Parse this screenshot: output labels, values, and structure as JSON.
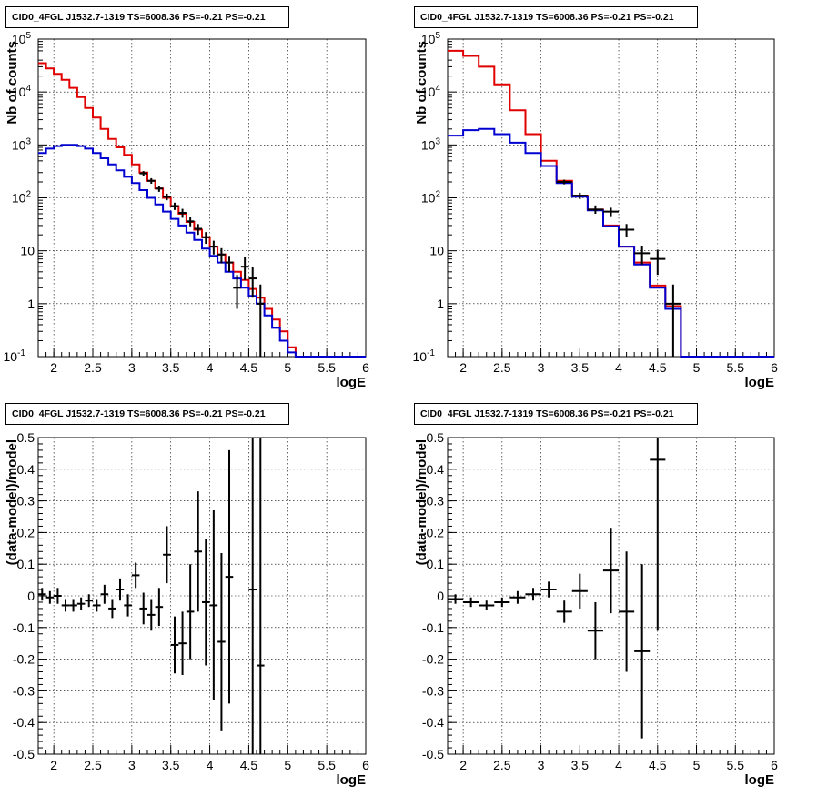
{
  "titles": {
    "tl": "CID0_4FGL J1532.7-1319 TS=6008.36 PS=-0.21 PS=-0.21",
    "tr": "CID0_4FGL J1532.7-1319 TS=6008.36 PS=-0.21 PS=-0.21",
    "bl": "CID0_4FGL J1532.7-1319 TS=6008.36 PS=-0.21 PS=-0.21",
    "br": "CID0_4FGL J1532.7-1319 TS=6008.36 PS=-0.21 PS=-0.21"
  },
  "colors": {
    "total_model": "#e00000",
    "source_model": "#0000d0",
    "data": "#000000",
    "grid": "#000000"
  },
  "chart_data": [
    {
      "id": "tl",
      "type": "line",
      "title": "CID0_4FGL J1532.7-1319 TS=6008.36 PS=-0.21 PS=-0.21",
      "xlabel": "logE",
      "ylabel": "Nb of counts",
      "xlim": [
        1.8,
        6
      ],
      "ylim": [
        0.1,
        100000
      ],
      "yscale": "log",
      "grid": true,
      "x_ticks": [
        "2",
        "2.5",
        "3",
        "3.5",
        "4",
        "4.5",
        "5",
        "5.5",
        "6"
      ],
      "y_ticks": [
        "10^-1",
        "1",
        "10",
        "10^2",
        "10^3",
        "10^4",
        "10^5"
      ],
      "series": [
        {
          "kind": "total_model",
          "bin_width": 0.1,
          "x": [
            1.85,
            1.95,
            2.05,
            2.15,
            2.25,
            2.35,
            2.45,
            2.55,
            2.65,
            2.75,
            2.85,
            2.95,
            3.05,
            3.15,
            3.25,
            3.35,
            3.45,
            3.55,
            3.65,
            3.75,
            3.85,
            3.95,
            4.05,
            4.15,
            4.25,
            4.35,
            4.45,
            4.55,
            4.65,
            4.75,
            4.85,
            4.95,
            5.05,
            5.15,
            5.25,
            5.35,
            5.45,
            5.55,
            5.65,
            5.75,
            5.85,
            5.95
          ],
          "y": [
            35000,
            28000,
            22000,
            17000,
            12000,
            8000,
            5000,
            3300,
            2000,
            1300,
            900,
            650,
            430,
            300,
            210,
            150,
            100,
            70,
            50,
            35,
            25,
            18,
            12,
            8.5,
            6,
            4,
            2.8,
            1.9,
            1.3,
            0.8,
            0.5,
            0.3,
            0.15,
            0.1,
            0.1,
            0.1,
            0.1,
            0.1,
            0.1,
            0.1,
            0.1,
            0.1
          ]
        },
        {
          "kind": "source_model",
          "bin_width": 0.1,
          "x": [
            1.85,
            1.95,
            2.05,
            2.15,
            2.25,
            2.35,
            2.45,
            2.55,
            2.65,
            2.75,
            2.85,
            2.95,
            3.05,
            3.15,
            3.25,
            3.35,
            3.45,
            3.55,
            3.65,
            3.75,
            3.85,
            3.95,
            4.05,
            4.15,
            4.25,
            4.35,
            4.45,
            4.55,
            4.65,
            4.75,
            4.85,
            4.95,
            5.05,
            5.15,
            5.25,
            5.35,
            5.45,
            5.55,
            5.65,
            5.75,
            5.85,
            5.95
          ],
          "y": [
            700,
            850,
            950,
            1000,
            1000,
            950,
            850,
            700,
            560,
            430,
            330,
            250,
            190,
            140,
            100,
            75,
            55,
            40,
            30,
            22,
            16,
            11,
            8,
            6,
            4,
            3,
            2,
            1.4,
            1,
            0.6,
            0.35,
            0.2,
            0.12,
            0.1,
            0.1,
            0.1,
            0.1,
            0.1,
            0.1,
            0.1,
            0.1,
            0.1
          ]
        },
        {
          "kind": "data",
          "x": [
            3.15,
            3.25,
            3.35,
            3.45,
            3.55,
            3.65,
            3.75,
            3.85,
            3.95,
            4.05,
            4.15,
            4.25,
            4.35,
            4.45,
            4.55,
            4.65
          ],
          "y": [
            290,
            210,
            150,
            105,
            70,
            52,
            36,
            26,
            18,
            12,
            8.5,
            6,
            2,
            5,
            3,
            1
          ],
          "y_low": [
            260,
            185,
            130,
            90,
            59,
            42,
            29,
            20,
            13.5,
            8.5,
            5.8,
            4,
            0.8,
            2.8,
            1.3,
            0.1
          ],
          "y_high": [
            320,
            235,
            170,
            120,
            81,
            62,
            43,
            32,
            22.5,
            15.5,
            11.2,
            8,
            3.5,
            7.5,
            5,
            2.3
          ],
          "x_err": 0.05
        }
      ]
    },
    {
      "id": "tr",
      "type": "line",
      "title": "CID0_4FGL J1532.7-1319 TS=6008.36 PS=-0.21 PS=-0.21",
      "xlabel": "logE",
      "ylabel": "Nb of counts",
      "xlim": [
        1.8,
        6
      ],
      "ylim": [
        0.1,
        100000
      ],
      "yscale": "log",
      "grid": true,
      "x_ticks": [
        "2",
        "2.5",
        "3",
        "3.5",
        "4",
        "4.5",
        "5",
        "5.5",
        "6"
      ],
      "y_ticks": [
        "10^-1",
        "1",
        "10",
        "10^2",
        "10^3",
        "10^4",
        "10^5"
      ],
      "series": [
        {
          "kind": "total_model",
          "bin_width": 0.2,
          "x": [
            1.9,
            2.1,
            2.3,
            2.5,
            2.7,
            2.9,
            3.1,
            3.3,
            3.5,
            3.7,
            3.9,
            4.1,
            4.3,
            4.5,
            4.7,
            4.9,
            5.1,
            5.3,
            5.5,
            5.7,
            5.9
          ],
          "y": [
            60000,
            48000,
            30000,
            14000,
            4500,
            1600,
            500,
            210,
            110,
            60,
            30,
            12,
            6,
            2.2,
            0.9,
            0.1,
            0.1,
            0.1,
            0.1,
            0.1,
            0.1
          ]
        },
        {
          "kind": "source_model",
          "bin_width": 0.2,
          "x": [
            1.9,
            2.1,
            2.3,
            2.5,
            2.7,
            2.9,
            3.1,
            3.3,
            3.5,
            3.7,
            3.9,
            4.1,
            4.3,
            4.5,
            4.7,
            4.9,
            5.1,
            5.3,
            5.5,
            5.7,
            5.9
          ],
          "y": [
            1500,
            1900,
            2000,
            1600,
            1100,
            700,
            400,
            190,
            105,
            58,
            29,
            12,
            5.5,
            2,
            0.8,
            0.1,
            0.1,
            0.1,
            0.1,
            0.1,
            0.1
          ]
        },
        {
          "kind": "data",
          "x": [
            3.3,
            3.5,
            3.7,
            3.9,
            4.1,
            4.3,
            4.5,
            4.7
          ],
          "y": [
            200,
            110,
            60,
            55,
            25,
            9,
            7,
            1
          ],
          "y_low": [
            180,
            95,
            50,
            45,
            18,
            5.5,
            3.5,
            0.1
          ],
          "y_high": [
            220,
            125,
            72,
            65,
            32,
            12.5,
            10.5,
            2.3
          ],
          "x_err": 0.1
        }
      ]
    },
    {
      "id": "bl",
      "type": "scatter",
      "title": "CID0_4FGL J1532.7-1319 TS=6008.36 PS=-0.21 PS=-0.21",
      "xlabel": "logE",
      "ylabel": "(data-model)/model",
      "xlim": [
        1.8,
        6
      ],
      "ylim": [
        -0.5,
        0.5
      ],
      "grid": true,
      "x_ticks": [
        "2",
        "2.5",
        "3",
        "3.5",
        "4",
        "4.5",
        "5",
        "5.5",
        "6"
      ],
      "y_ticks": [
        "-0.5",
        "-0.4",
        "-0.3",
        "-0.2",
        "-0.1",
        "0",
        "0.1",
        "0.2",
        "0.3",
        "0.4",
        "0.5"
      ],
      "series": [
        {
          "kind": "data",
          "x": [
            1.85,
            1.95,
            2.05,
            2.15,
            2.25,
            2.35,
            2.45,
            2.55,
            2.65,
            2.75,
            2.85,
            2.95,
            3.05,
            3.15,
            3.25,
            3.35,
            3.45,
            3.55,
            3.65,
            3.75,
            3.85,
            3.95,
            4.05,
            4.15,
            4.25,
            4.55,
            4.65
          ],
          "y": [
            0.005,
            -0.005,
            0,
            -0.03,
            -0.03,
            -0.025,
            -0.015,
            -0.03,
            0.005,
            -0.04,
            0.02,
            -0.03,
            0.065,
            -0.04,
            -0.06,
            -0.035,
            0.13,
            -0.155,
            -0.15,
            -0.05,
            0.14,
            -0.02,
            -0.03,
            -0.145,
            0.06,
            0.02,
            -0.22
          ],
          "y_err": [
            0.02,
            0.02,
            0.025,
            0.02,
            0.02,
            0.02,
            0.02,
            0.02,
            0.03,
            0.03,
            0.035,
            0.035,
            0.04,
            0.05,
            0.05,
            0.06,
            0.09,
            0.09,
            0.1,
            0.15,
            0.19,
            0.2,
            0.3,
            0.28,
            0.4,
            0.7,
            0.72
          ],
          "x_err": 0.05
        }
      ]
    },
    {
      "id": "br",
      "type": "scatter",
      "title": "CID0_4FGL J1532.7-1319 TS=6008.36 PS=-0.21 PS=-0.21",
      "xlabel": "logE",
      "ylabel": "(data-model)/model",
      "xlim": [
        1.8,
        6
      ],
      "ylim": [
        -0.5,
        0.5
      ],
      "grid": true,
      "x_ticks": [
        "2",
        "2.5",
        "3",
        "3.5",
        "4",
        "4.5",
        "5",
        "5.5",
        "6"
      ],
      "y_ticks": [
        "-0.5",
        "-0.4",
        "-0.3",
        "-0.2",
        "-0.1",
        "0",
        "0.1",
        "0.2",
        "0.3",
        "0.4",
        "0.5"
      ],
      "series": [
        {
          "kind": "data",
          "x": [
            1.9,
            2.1,
            2.3,
            2.5,
            2.7,
            2.9,
            3.1,
            3.3,
            3.5,
            3.7,
            3.9,
            4.1,
            4.3,
            4.5
          ],
          "y": [
            -0.01,
            -0.02,
            -0.03,
            -0.02,
            -0.005,
            0.005,
            0.02,
            -0.05,
            0.015,
            -0.11,
            0.08,
            -0.05,
            -0.175,
            0.43
          ],
          "y_err": [
            0.015,
            0.015,
            0.015,
            0.015,
            0.02,
            0.02,
            0.025,
            0.035,
            0.055,
            0.09,
            0.135,
            0.19,
            0.275,
            0.54
          ],
          "x_err": 0.1
        }
      ]
    }
  ]
}
